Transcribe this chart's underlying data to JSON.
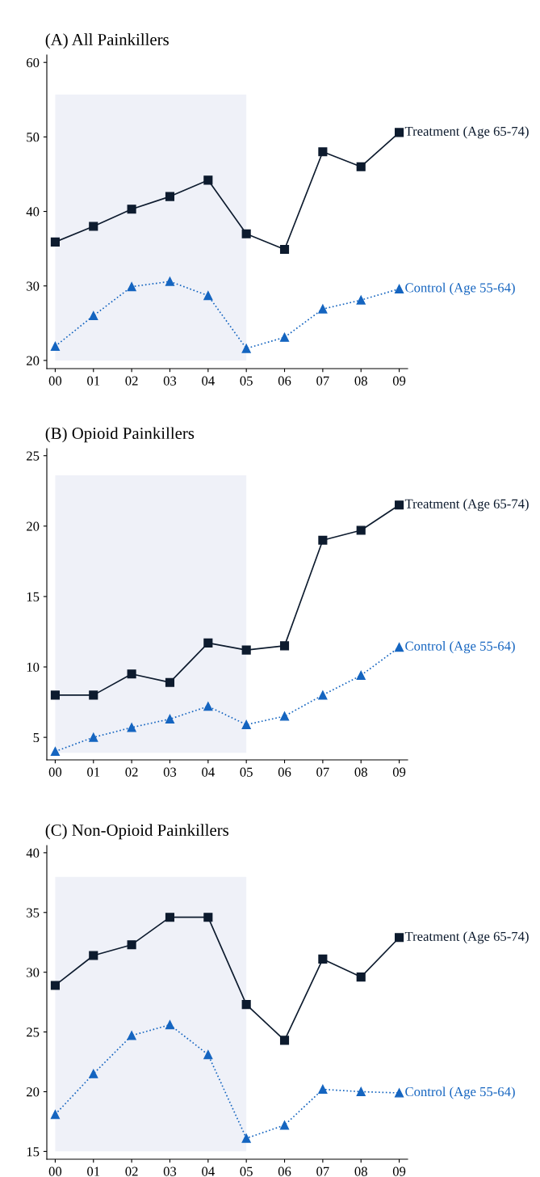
{
  "chart_data": [
    {
      "type": "line",
      "title": "(A) All Painkillers",
      "categories": [
        "00",
        "01",
        "02",
        "03",
        "04",
        "05",
        "06",
        "07",
        "08",
        "09"
      ],
      "ylim": [
        18.9,
        61
      ],
      "yticks": [
        20,
        30,
        40,
        50,
        60
      ],
      "grid": false,
      "legend": false,
      "bands": [
        {
          "axis": "x",
          "from": "00",
          "to": "05",
          "color": "#eff1f8"
        }
      ],
      "series": [
        {
          "name": "Treatment (Age 65-74)",
          "color": "#0d1b2e",
          "marker": "square",
          "line_style": "solid",
          "values": [
            35.9,
            38.0,
            40.3,
            42.0,
            44.2,
            37.0,
            34.9,
            48.0,
            46.0,
            50.6
          ]
        },
        {
          "name": "Control (Age 55-64)",
          "color": "#1565c0",
          "marker": "triangle",
          "line_style": "dotted",
          "values": [
            21.9,
            26.0,
            29.9,
            30.6,
            28.7,
            21.6,
            23.1,
            26.9,
            28.1,
            29.6
          ]
        }
      ]
    },
    {
      "type": "line",
      "title": "(B) Opioid Painkillers",
      "categories": [
        "00",
        "01",
        "02",
        "03",
        "04",
        "05",
        "06",
        "07",
        "08",
        "09"
      ],
      "ylim": [
        3.4,
        25.5
      ],
      "yticks": [
        5,
        10,
        15,
        20,
        25
      ],
      "grid": false,
      "legend": false,
      "bands": [
        {
          "axis": "x",
          "from": "00",
          "to": "05",
          "color": "#eff1f8"
        }
      ],
      "series": [
        {
          "name": "Treatment (Age 65-74)",
          "color": "#0d1b2e",
          "marker": "square",
          "line_style": "solid",
          "values": [
            8.0,
            8.0,
            9.5,
            8.9,
            11.7,
            11.2,
            11.5,
            19.0,
            19.7,
            21.5
          ]
        },
        {
          "name": "Control (Age 55-64)",
          "color": "#1565c0",
          "marker": "triangle",
          "line_style": "dotted",
          "values": [
            4.0,
            5.0,
            5.7,
            6.3,
            7.2,
            5.9,
            6.5,
            8.0,
            9.4,
            11.4
          ]
        }
      ]
    },
    {
      "type": "line",
      "title": "(C) Non-Opioid Painkillers",
      "categories": [
        "00",
        "01",
        "02",
        "03",
        "04",
        "05",
        "06",
        "07",
        "08",
        "09"
      ],
      "ylim": [
        14.35,
        40.6
      ],
      "yticks": [
        15,
        20,
        25,
        30,
        35,
        40
      ],
      "grid": false,
      "legend": false,
      "bands": [
        {
          "axis": "x",
          "from": "00",
          "to": "05",
          "color": "#eff1f8"
        }
      ],
      "series": [
        {
          "name": "Treatment (Age 65-74)",
          "color": "#0d1b2e",
          "marker": "square",
          "line_style": "solid",
          "values": [
            28.9,
            31.4,
            32.3,
            34.6,
            34.6,
            27.3,
            24.3,
            31.1,
            29.6,
            32.9
          ]
        },
        {
          "name": "Control (Age 55-64)",
          "color": "#1565c0",
          "marker": "triangle",
          "line_style": "dotted",
          "values": [
            18.1,
            21.5,
            24.7,
            25.6,
            23.1,
            16.1,
            17.2,
            20.2,
            20.0,
            19.9
          ]
        }
      ]
    }
  ]
}
